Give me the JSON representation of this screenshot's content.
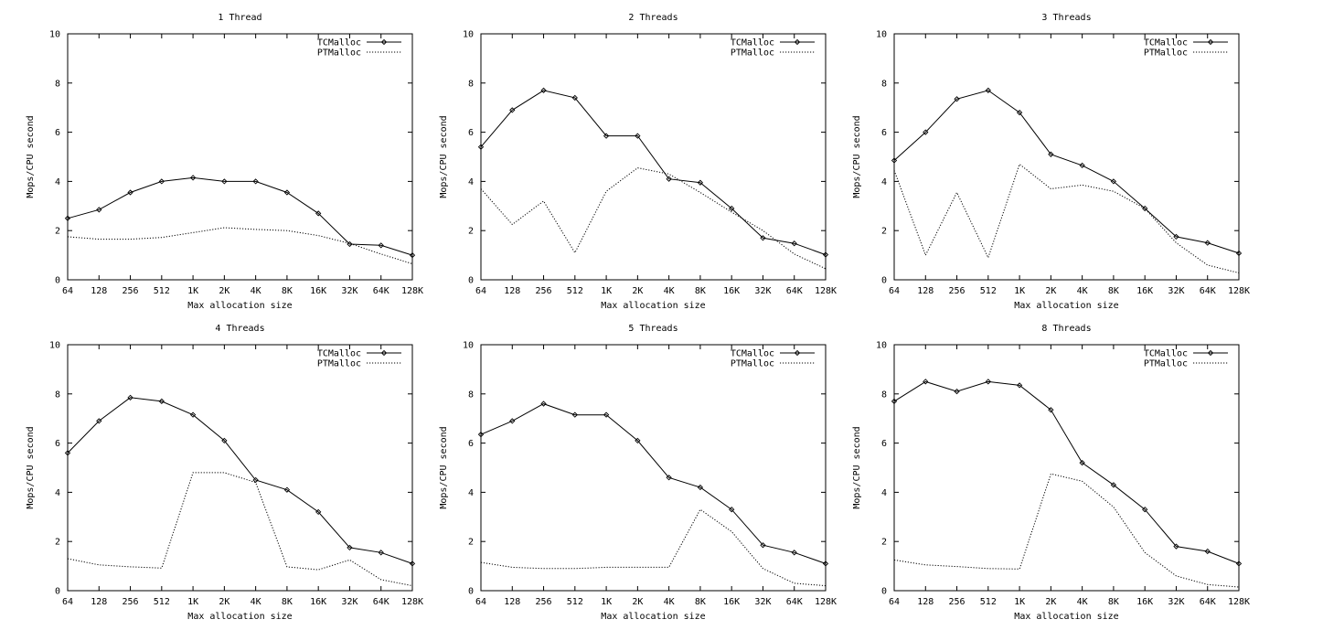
{
  "chart_data": [
    {
      "type": "line",
      "title": "1 Thread",
      "xlabel": "Max allocation size",
      "ylabel": "Mops/CPU second",
      "categories": [
        "64",
        "128",
        "256",
        "512",
        "1K",
        "2K",
        "4K",
        "8K",
        "16K",
        "32K",
        "64K",
        "128K"
      ],
      "ylim": [
        0,
        10
      ],
      "yticks": [
        "0",
        "2",
        "4",
        "6",
        "8",
        "10"
      ],
      "legend_position": "top-right",
      "series": [
        {
          "name": "TCMalloc",
          "style": "solid-markers",
          "values": [
            2.5,
            2.85,
            3.55,
            4.0,
            4.15,
            4.0,
            4.0,
            3.55,
            2.7,
            1.45,
            1.4,
            1.0
          ]
        },
        {
          "name": "PTMalloc",
          "style": "dotted",
          "values": [
            1.75,
            1.65,
            1.65,
            1.72,
            1.92,
            2.12,
            2.05,
            2.0,
            1.8,
            1.48,
            1.05,
            0.65
          ]
        }
      ]
    },
    {
      "type": "line",
      "title": "2 Threads",
      "xlabel": "Max allocation size",
      "ylabel": "Mops/CPU second",
      "categories": [
        "64",
        "128",
        "256",
        "512",
        "1K",
        "2K",
        "4K",
        "8K",
        "16K",
        "32K",
        "64K",
        "128K"
      ],
      "ylim": [
        0,
        10
      ],
      "yticks": [
        "0",
        "2",
        "4",
        "6",
        "8",
        "10"
      ],
      "legend_position": "top-right",
      "series": [
        {
          "name": "TCMalloc",
          "style": "solid-markers",
          "values": [
            5.4,
            6.9,
            7.7,
            7.4,
            5.85,
            5.85,
            4.1,
            3.95,
            2.9,
            1.7,
            1.48,
            1.02
          ]
        },
        {
          "name": "PTMalloc",
          "style": "dotted",
          "values": [
            3.7,
            2.25,
            3.2,
            1.1,
            3.6,
            4.55,
            4.3,
            3.55,
            2.75,
            2.0,
            1.05,
            0.45
          ]
        }
      ]
    },
    {
      "type": "line",
      "title": "3 Threads",
      "xlabel": "Max allocation size",
      "ylabel": "Mops/CPU second",
      "categories": [
        "64",
        "128",
        "256",
        "512",
        "1K",
        "2K",
        "4K",
        "8K",
        "16K",
        "32K",
        "64K",
        "128K"
      ],
      "ylim": [
        0,
        10
      ],
      "yticks": [
        "0",
        "2",
        "4",
        "6",
        "8",
        "10"
      ],
      "legend_position": "top-right",
      "series": [
        {
          "name": "TCMalloc",
          "style": "solid-markers",
          "values": [
            4.85,
            6.0,
            7.35,
            7.7,
            6.8,
            5.1,
            4.65,
            4.0,
            2.9,
            1.75,
            1.5,
            1.08
          ]
        },
        {
          "name": "PTMalloc",
          "style": "dotted",
          "values": [
            4.45,
            1.0,
            3.55,
            0.9,
            4.7,
            3.7,
            3.85,
            3.6,
            2.9,
            1.5,
            0.6,
            0.28
          ]
        }
      ]
    },
    {
      "type": "line",
      "title": "4 Threads",
      "xlabel": "Max allocation size",
      "ylabel": "Mops/CPU second",
      "categories": [
        "64",
        "128",
        "256",
        "512",
        "1K",
        "2K",
        "4K",
        "8K",
        "16K",
        "32K",
        "64K",
        "128K"
      ],
      "ylim": [
        0,
        10
      ],
      "yticks": [
        "0",
        "2",
        "4",
        "6",
        "8",
        "10"
      ],
      "legend_position": "top-right",
      "series": [
        {
          "name": "TCMalloc",
          "style": "solid-markers",
          "values": [
            5.6,
            6.9,
            7.85,
            7.7,
            7.15,
            6.1,
            4.5,
            4.1,
            3.2,
            1.75,
            1.55,
            1.1
          ]
        },
        {
          "name": "PTMalloc",
          "style": "dotted",
          "values": [
            1.3,
            1.05,
            0.97,
            0.92,
            4.8,
            4.8,
            4.4,
            0.97,
            0.85,
            1.25,
            0.45,
            0.2
          ]
        }
      ]
    },
    {
      "type": "line",
      "title": "5 Threads",
      "xlabel": "Max allocation size",
      "ylabel": "Mops/CPU second",
      "categories": [
        "64",
        "128",
        "256",
        "512",
        "1K",
        "2K",
        "4K",
        "8K",
        "16K",
        "32K",
        "64K",
        "128K"
      ],
      "ylim": [
        0,
        10
      ],
      "yticks": [
        "0",
        "2",
        "4",
        "6",
        "8",
        "10"
      ],
      "legend_position": "top-right",
      "series": [
        {
          "name": "TCMalloc",
          "style": "solid-markers",
          "values": [
            6.35,
            6.9,
            7.6,
            7.15,
            7.15,
            6.1,
            4.6,
            4.2,
            3.3,
            1.85,
            1.55,
            1.1
          ]
        },
        {
          "name": "PTMalloc",
          "style": "dotted",
          "values": [
            1.15,
            0.95,
            0.9,
            0.9,
            0.95,
            0.95,
            0.95,
            3.3,
            2.4,
            0.9,
            0.3,
            0.2
          ]
        }
      ]
    },
    {
      "type": "line",
      "title": "8 Threads",
      "xlabel": "Max allocation size",
      "ylabel": "Mops/CPU second",
      "categories": [
        "64",
        "128",
        "256",
        "512",
        "1K",
        "2K",
        "4K",
        "8K",
        "16K",
        "32K",
        "64K",
        "128K"
      ],
      "ylim": [
        0,
        10
      ],
      "yticks": [
        "0",
        "2",
        "4",
        "6",
        "8",
        "10"
      ],
      "legend_position": "top-right",
      "series": [
        {
          "name": "TCMalloc",
          "style": "solid-markers",
          "values": [
            7.7,
            8.5,
            8.1,
            8.5,
            8.35,
            7.35,
            5.2,
            4.3,
            3.3,
            1.8,
            1.6,
            1.1
          ]
        },
        {
          "name": "PTMalloc",
          "style": "dotted",
          "values": [
            1.25,
            1.05,
            0.98,
            0.9,
            0.88,
            4.75,
            4.45,
            3.4,
            1.55,
            0.6,
            0.25,
            0.15
          ]
        }
      ]
    }
  ]
}
